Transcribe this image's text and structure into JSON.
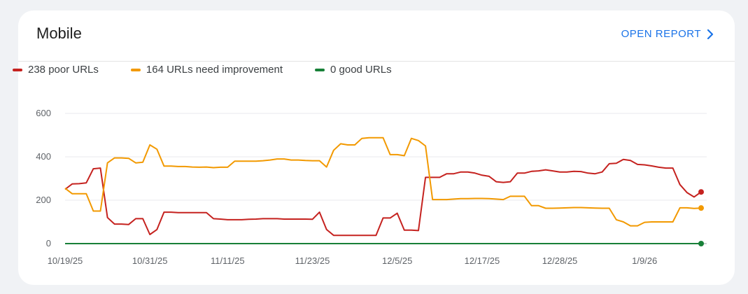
{
  "card": {
    "title": "Mobile",
    "open_report_label": "OPEN REPORT",
    "open_report_icon": "chevron-right-icon",
    "accent_color": "#1a73e8"
  },
  "legend": [
    {
      "label": "238 poor URLs",
      "color": "#c5221f"
    },
    {
      "label": "164 URLs need improvement",
      "color": "#f29900"
    },
    {
      "label": "0 good URLs",
      "color": "#188038"
    }
  ],
  "chart_data": {
    "type": "line",
    "ylim": [
      0,
      600
    ],
    "yticks": [
      0,
      200,
      400,
      600
    ],
    "xlim": [
      "2025-10-19",
      "2026-01-16"
    ],
    "xticks": [
      "10/19/25",
      "10/31/25",
      "11/11/25",
      "11/23/25",
      "12/5/25",
      "12/17/25",
      "12/28/25",
      "1/9/26"
    ],
    "xtick_dates": [
      "2025-10-19",
      "2025-10-31",
      "2025-11-11",
      "2025-11-23",
      "2025-12-05",
      "2025-12-17",
      "2025-12-28",
      "2026-01-09"
    ],
    "grid": true,
    "legend_position": "top-left",
    "series": [
      {
        "name": "238 poor URLs",
        "color": "#c5221f",
        "points": [
          [
            "2025-10-19",
            250
          ],
          [
            "2025-10-20",
            275
          ],
          [
            "2025-10-21",
            276
          ],
          [
            "2025-10-22",
            280
          ],
          [
            "2025-10-23",
            345
          ],
          [
            "2025-10-24",
            348
          ],
          [
            "2025-10-25",
            120
          ],
          [
            "2025-10-26",
            90
          ],
          [
            "2025-10-27",
            90
          ],
          [
            "2025-10-28",
            88
          ],
          [
            "2025-10-29",
            115
          ],
          [
            "2025-10-30",
            115
          ],
          [
            "2025-10-31",
            42
          ],
          [
            "2025-11-01",
            65
          ],
          [
            "2025-11-02",
            145
          ],
          [
            "2025-11-03",
            145
          ],
          [
            "2025-11-04",
            143
          ],
          [
            "2025-11-05",
            143
          ],
          [
            "2025-11-06",
            143
          ],
          [
            "2025-11-07",
            143
          ],
          [
            "2025-11-08",
            143
          ],
          [
            "2025-11-09",
            115
          ],
          [
            "2025-11-10",
            113
          ],
          [
            "2025-11-11",
            110
          ],
          [
            "2025-11-12",
            110
          ],
          [
            "2025-11-13",
            110
          ],
          [
            "2025-11-14",
            112
          ],
          [
            "2025-11-15",
            113
          ],
          [
            "2025-11-16",
            115
          ],
          [
            "2025-11-17",
            115
          ],
          [
            "2025-11-18",
            115
          ],
          [
            "2025-11-19",
            113
          ],
          [
            "2025-11-20",
            113
          ],
          [
            "2025-11-21",
            113
          ],
          [
            "2025-11-22",
            113
          ],
          [
            "2025-11-23",
            112
          ],
          [
            "2025-11-24",
            145
          ],
          [
            "2025-11-25",
            65
          ],
          [
            "2025-11-26",
            38
          ],
          [
            "2025-11-27",
            38
          ],
          [
            "2025-11-28",
            38
          ],
          [
            "2025-11-29",
            38
          ],
          [
            "2025-11-30",
            38
          ],
          [
            "2025-12-01",
            38
          ],
          [
            "2025-12-02",
            38
          ],
          [
            "2025-12-03",
            118
          ],
          [
            "2025-12-04",
            118
          ],
          [
            "2025-12-05",
            140
          ],
          [
            "2025-12-06",
            62
          ],
          [
            "2025-12-07",
            62
          ],
          [
            "2025-12-08",
            60
          ],
          [
            "2025-12-09",
            305
          ],
          [
            "2025-12-10",
            305
          ],
          [
            "2025-12-11",
            305
          ],
          [
            "2025-12-12",
            322
          ],
          [
            "2025-12-13",
            322
          ],
          [
            "2025-12-14",
            330
          ],
          [
            "2025-12-15",
            330
          ],
          [
            "2025-12-16",
            325
          ],
          [
            "2025-12-17",
            315
          ],
          [
            "2025-12-18",
            310
          ],
          [
            "2025-12-19",
            285
          ],
          [
            "2025-12-20",
            282
          ],
          [
            "2025-12-21",
            285
          ],
          [
            "2025-12-22",
            325
          ],
          [
            "2025-12-23",
            325
          ],
          [
            "2025-12-24",
            333
          ],
          [
            "2025-12-25",
            335
          ],
          [
            "2025-12-26",
            340
          ],
          [
            "2025-12-27",
            335
          ],
          [
            "2025-12-28",
            330
          ],
          [
            "2025-12-29",
            330
          ],
          [
            "2025-12-30",
            333
          ],
          [
            "2025-12-31",
            332
          ],
          [
            "2026-01-01",
            325
          ],
          [
            "2026-01-02",
            322
          ],
          [
            "2026-01-03",
            330
          ],
          [
            "2026-01-04",
            368
          ],
          [
            "2026-01-05",
            370
          ],
          [
            "2026-01-06",
            388
          ],
          [
            "2026-01-07",
            383
          ],
          [
            "2026-01-08",
            365
          ],
          [
            "2026-01-09",
            363
          ],
          [
            "2026-01-10",
            358
          ],
          [
            "2026-01-11",
            352
          ],
          [
            "2026-01-12",
            348
          ],
          [
            "2026-01-13",
            348
          ],
          [
            "2026-01-14",
            272
          ],
          [
            "2026-01-15",
            235
          ],
          [
            "2026-01-16",
            215
          ],
          [
            "2026-01-17",
            238
          ]
        ]
      },
      {
        "name": "164 URLs need improvement",
        "color": "#f29900",
        "points": [
          [
            "2025-10-19",
            255
          ],
          [
            "2025-10-20",
            230
          ],
          [
            "2025-10-21",
            230
          ],
          [
            "2025-10-22",
            230
          ],
          [
            "2025-10-23",
            150
          ],
          [
            "2025-10-24",
            150
          ],
          [
            "2025-10-25",
            372
          ],
          [
            "2025-10-26",
            395
          ],
          [
            "2025-10-27",
            395
          ],
          [
            "2025-10-28",
            393
          ],
          [
            "2025-10-29",
            372
          ],
          [
            "2025-10-30",
            375
          ],
          [
            "2025-10-31",
            455
          ],
          [
            "2025-11-01",
            435
          ],
          [
            "2025-11-02",
            357
          ],
          [
            "2025-11-03",
            357
          ],
          [
            "2025-11-04",
            355
          ],
          [
            "2025-11-05",
            355
          ],
          [
            "2025-11-06",
            353
          ],
          [
            "2025-11-07",
            352
          ],
          [
            "2025-11-08",
            353
          ],
          [
            "2025-11-09",
            350
          ],
          [
            "2025-11-10",
            352
          ],
          [
            "2025-11-11",
            352
          ],
          [
            "2025-11-12",
            380
          ],
          [
            "2025-11-13",
            380
          ],
          [
            "2025-11-14",
            380
          ],
          [
            "2025-11-15",
            380
          ],
          [
            "2025-11-16",
            382
          ],
          [
            "2025-11-17",
            385
          ],
          [
            "2025-11-18",
            390
          ],
          [
            "2025-11-19",
            390
          ],
          [
            "2025-11-20",
            385
          ],
          [
            "2025-11-21",
            385
          ],
          [
            "2025-11-22",
            383
          ],
          [
            "2025-11-23",
            382
          ],
          [
            "2025-11-24",
            382
          ],
          [
            "2025-11-25",
            353
          ],
          [
            "2025-11-26",
            430
          ],
          [
            "2025-11-27",
            460
          ],
          [
            "2025-11-28",
            455
          ],
          [
            "2025-11-29",
            455
          ],
          [
            "2025-11-30",
            485
          ],
          [
            "2025-12-01",
            488
          ],
          [
            "2025-12-02",
            488
          ],
          [
            "2025-12-03",
            488
          ],
          [
            "2025-12-04",
            410
          ],
          [
            "2025-12-05",
            410
          ],
          [
            "2025-12-06",
            405
          ],
          [
            "2025-12-07",
            485
          ],
          [
            "2025-12-08",
            475
          ],
          [
            "2025-12-09",
            450
          ],
          [
            "2025-12-10",
            203
          ],
          [
            "2025-12-11",
            203
          ],
          [
            "2025-12-12",
            203
          ],
          [
            "2025-12-13",
            205
          ],
          [
            "2025-12-14",
            207
          ],
          [
            "2025-12-15",
            207
          ],
          [
            "2025-12-16",
            208
          ],
          [
            "2025-12-17",
            208
          ],
          [
            "2025-12-18",
            207
          ],
          [
            "2025-12-19",
            205
          ],
          [
            "2025-12-20",
            203
          ],
          [
            "2025-12-21",
            218
          ],
          [
            "2025-12-22",
            218
          ],
          [
            "2025-12-23",
            218
          ],
          [
            "2025-12-24",
            175
          ],
          [
            "2025-12-25",
            175
          ],
          [
            "2025-12-26",
            163
          ],
          [
            "2025-12-27",
            163
          ],
          [
            "2025-12-28",
            164
          ],
          [
            "2025-12-29",
            165
          ],
          [
            "2025-12-30",
            166
          ],
          [
            "2025-12-31",
            166
          ],
          [
            "2026-01-01",
            165
          ],
          [
            "2026-01-02",
            164
          ],
          [
            "2026-01-03",
            163
          ],
          [
            "2026-01-04",
            163
          ],
          [
            "2026-01-05",
            110
          ],
          [
            "2026-01-06",
            100
          ],
          [
            "2026-01-07",
            82
          ],
          [
            "2026-01-08",
            82
          ],
          [
            "2026-01-09",
            98
          ],
          [
            "2026-01-10",
            100
          ],
          [
            "2026-01-11",
            100
          ],
          [
            "2026-01-12",
            100
          ],
          [
            "2026-01-13",
            100
          ],
          [
            "2026-01-14",
            165
          ],
          [
            "2026-01-15",
            165
          ],
          [
            "2026-01-16",
            162
          ],
          [
            "2026-01-17",
            164
          ]
        ]
      },
      {
        "name": "0 good URLs",
        "color": "#188038",
        "points": [
          [
            "2025-10-19",
            0
          ],
          [
            "2026-01-17",
            0
          ]
        ]
      }
    ]
  }
}
